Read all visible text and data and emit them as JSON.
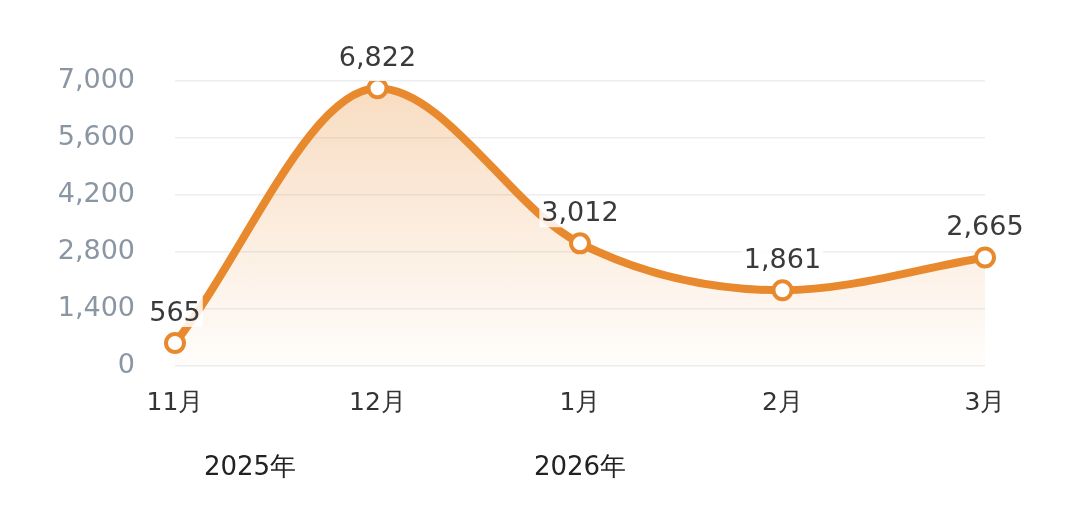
{
  "chart_data": {
    "type": "area",
    "categories": [
      "11月",
      "12月",
      "1月",
      "2月",
      "3月"
    ],
    "series": [
      {
        "color": "#e8892e",
        "values": [
          565,
          6822,
          3012,
          1861,
          2665
        ],
        "value_labels": [
          "565",
          "6,822",
          "3,012",
          "1,861",
          "2,665"
        ]
      }
    ],
    "ylim": [
      0,
      7000
    ],
    "yticks": [
      0,
      {
        "value": 1400,
        "label": "1,400"
      },
      {
        "value": 2800,
        "label": "2,800"
      },
      {
        "value": 4200,
        "label": "4,200"
      },
      {
        "value": 5600,
        "label": "5,600"
      },
      {
        "value": 7000,
        "label": "7,000"
      }
    ],
    "grid": "y",
    "legend": false,
    "marker": "circle",
    "line_style": "solid",
    "annotations": [
      "2025年",
      "2026年"
    ]
  }
}
